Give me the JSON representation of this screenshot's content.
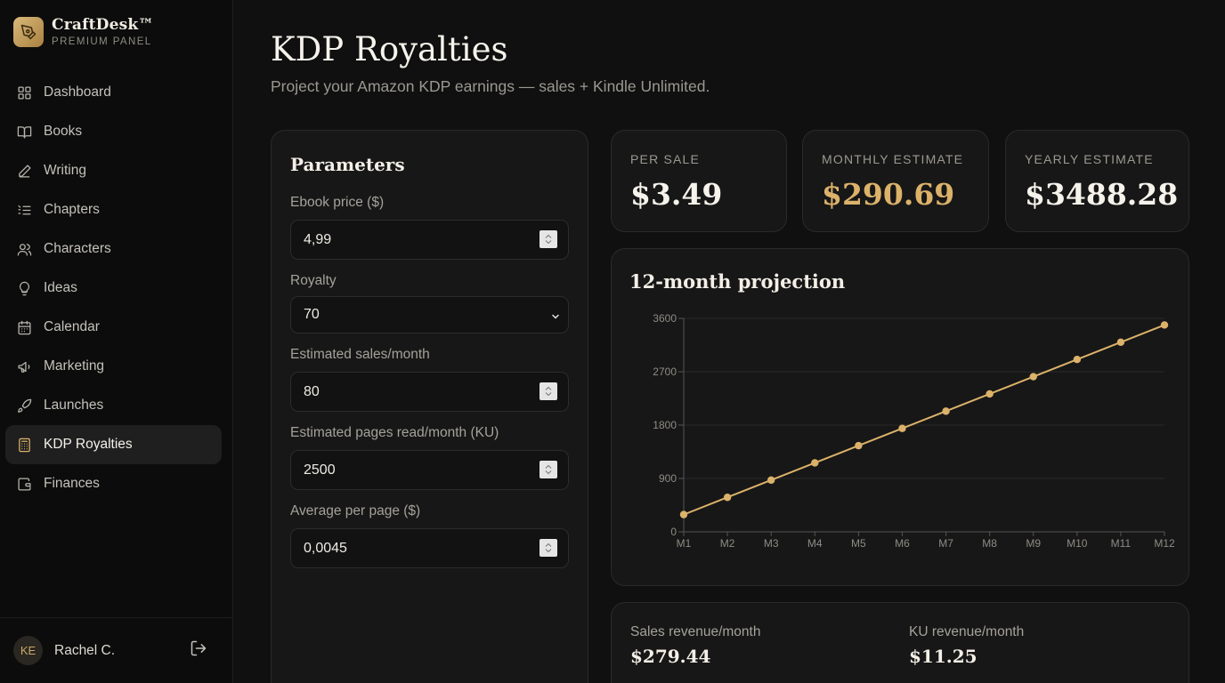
{
  "brand": {
    "name": "CraftDesk™",
    "subtitle": "PREMIUM PANEL"
  },
  "nav": [
    {
      "label": "Dashboard",
      "icon": "grid-icon",
      "active": false
    },
    {
      "label": "Books",
      "icon": "book-icon",
      "active": false
    },
    {
      "label": "Writing",
      "icon": "pen-icon",
      "active": false
    },
    {
      "label": "Chapters",
      "icon": "list-icon",
      "active": false
    },
    {
      "label": "Characters",
      "icon": "users-icon",
      "active": false
    },
    {
      "label": "Ideas",
      "icon": "lightbulb-icon",
      "active": false
    },
    {
      "label": "Calendar",
      "icon": "calendar-icon",
      "active": false
    },
    {
      "label": "Marketing",
      "icon": "megaphone-icon",
      "active": false
    },
    {
      "label": "Launches",
      "icon": "rocket-icon",
      "active": false
    },
    {
      "label": "KDP Royalties",
      "icon": "calculator-icon",
      "active": true
    },
    {
      "label": "Finances",
      "icon": "wallet-icon",
      "active": false
    }
  ],
  "user": {
    "initials": "KE",
    "name": "Rachel C."
  },
  "header": {
    "title": "KDP Royalties",
    "subtitle": "Project your Amazon KDP earnings — sales + Kindle Unlimited."
  },
  "params": {
    "title": "Parameters",
    "fields": [
      {
        "label": "Ebook price ($)",
        "value": "4,99",
        "type": "number"
      },
      {
        "label": "Royalty",
        "value": "70",
        "type": "select"
      },
      {
        "label": "Estimated sales/month",
        "value": "80",
        "type": "number"
      },
      {
        "label": "Estimated pages read/month (KU)",
        "value": "2500",
        "type": "number"
      },
      {
        "label": "Average per page ($)",
        "value": "0,0045",
        "type": "number"
      }
    ]
  },
  "stats": {
    "per_sale": {
      "label": "PER SALE",
      "value": "$3.49"
    },
    "monthly": {
      "label": "MONTHLY ESTIMATE",
      "value": "$290.69"
    },
    "yearly": {
      "label": "YEARLY ESTIMATE",
      "value": "$3488.28"
    }
  },
  "colors": {
    "accent": "#dcb26a"
  },
  "chart_data": {
    "type": "line",
    "title": "12-month projection",
    "categories": [
      "M1",
      "M2",
      "M3",
      "M4",
      "M5",
      "M6",
      "M7",
      "M8",
      "M9",
      "M10",
      "M11",
      "M12"
    ],
    "series": [
      {
        "values": [
          290.69,
          581.38,
          872.07,
          1162.76,
          1453.45,
          1744.14,
          2034.83,
          2325.52,
          2616.21,
          2906.9,
          3197.59,
          3488.28
        ]
      }
    ],
    "y_ticks": [
      0,
      900,
      1800,
      2700,
      3600
    ],
    "ylim": [
      0,
      3600
    ],
    "grid": true,
    "legend": "none"
  },
  "revenue": {
    "sales": {
      "label": "Sales revenue/month",
      "value": "$279.44"
    },
    "ku": {
      "label": "KU revenue/month",
      "value": "$11.25"
    }
  }
}
